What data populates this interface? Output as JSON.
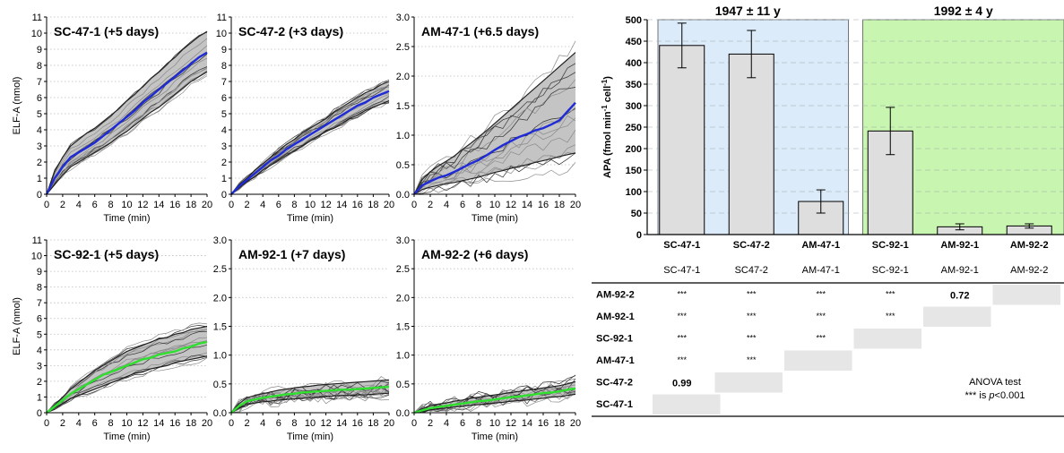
{
  "chart_data": [
    {
      "type": "line",
      "title": "SC-47-1 (+5 days)",
      "xlabel": "Time (min)",
      "ylabel": "ELF-A (nmol)",
      "xlim": [
        0,
        20
      ],
      "ylim": [
        0,
        11
      ],
      "mean_color": "#1f2bd6",
      "x": [
        0,
        1,
        2,
        3,
        4,
        5,
        6,
        7,
        8,
        9,
        10,
        11,
        12,
        13,
        14,
        15,
        16,
        17,
        18,
        19,
        20
      ],
      "mean": [
        0,
        1.0,
        1.7,
        2.3,
        2.6,
        2.9,
        3.2,
        3.6,
        4.0,
        4.4,
        4.8,
        5.2,
        5.7,
        6.1,
        6.5,
        6.9,
        7.3,
        7.7,
        8.1,
        8.5,
        8.8
      ],
      "band_lower": [
        0,
        0.6,
        1.2,
        1.7,
        2.0,
        2.3,
        2.6,
        2.9,
        3.2,
        3.6,
        3.9,
        4.3,
        4.7,
        5.1,
        5.4,
        5.8,
        6.2,
        6.6,
        7.0,
        7.3,
        7.6
      ],
      "band_upper": [
        0,
        1.4,
        2.3,
        3.0,
        3.4,
        3.8,
        4.1,
        4.5,
        4.9,
        5.3,
        5.8,
        6.2,
        6.7,
        7.2,
        7.6,
        8.1,
        8.5,
        9.0,
        9.4,
        9.8,
        10.1
      ]
    },
    {
      "type": "line",
      "title": "SC-47-2 (+3 days)",
      "xlabel": "Time (min)",
      "ylabel": "",
      "xlim": [
        0,
        20
      ],
      "ylim": [
        0,
        11
      ],
      "mean_color": "#1f2bd6",
      "x": [
        0,
        1,
        2,
        3,
        4,
        5,
        6,
        7,
        8,
        9,
        10,
        11,
        12,
        13,
        14,
        15,
        16,
        17,
        18,
        19,
        20
      ],
      "mean": [
        0,
        0.5,
        0.9,
        1.3,
        1.7,
        2.1,
        2.4,
        2.8,
        3.1,
        3.4,
        3.7,
        4.0,
        4.3,
        4.6,
        4.9,
        5.2,
        5.5,
        5.7,
        6.0,
        6.2,
        6.4
      ],
      "band_lower": [
        0,
        0.4,
        0.8,
        1.1,
        1.5,
        1.8,
        2.1,
        2.4,
        2.7,
        3.0,
        3.3,
        3.6,
        3.9,
        4.1,
        4.4,
        4.7,
        4.9,
        5.2,
        5.4,
        5.6,
        5.8
      ],
      "band_upper": [
        0,
        0.6,
        1.0,
        1.5,
        1.9,
        2.3,
        2.7,
        3.1,
        3.4,
        3.8,
        4.1,
        4.4,
        4.7,
        5.1,
        5.4,
        5.7,
        6.0,
        6.3,
        6.5,
        6.8,
        7.0
      ]
    },
    {
      "type": "line",
      "title": "AM-47-1 (+6.5 days)",
      "xlabel": "Time (min)",
      "ylabel": "",
      "xlim": [
        0,
        20
      ],
      "ylim": [
        0,
        3.0
      ],
      "mean_color": "#1f2bd6",
      "x": [
        0,
        1,
        2,
        3,
        4,
        5,
        6,
        7,
        8,
        9,
        10,
        11,
        12,
        13,
        14,
        15,
        16,
        17,
        18,
        19,
        20
      ],
      "mean": [
        0,
        0.15,
        0.22,
        0.28,
        0.32,
        0.38,
        0.45,
        0.52,
        0.58,
        0.66,
        0.75,
        0.83,
        0.9,
        0.97,
        1.02,
        1.08,
        1.12,
        1.18,
        1.25,
        1.4,
        1.55
      ],
      "band_lower": [
        0,
        0.08,
        0.12,
        0.15,
        0.18,
        0.2,
        0.23,
        0.26,
        0.29,
        0.33,
        0.37,
        0.4,
        0.44,
        0.47,
        0.5,
        0.54,
        0.57,
        0.6,
        0.64,
        0.67,
        0.7
      ],
      "band_upper": [
        0,
        0.25,
        0.38,
        0.48,
        0.56,
        0.65,
        0.76,
        0.86,
        0.97,
        1.08,
        1.2,
        1.32,
        1.44,
        1.56,
        1.68,
        1.8,
        1.92,
        2.04,
        2.16,
        2.28,
        2.4
      ]
    },
    {
      "type": "line",
      "title": "SC-92-1 (+5 days)",
      "xlabel": "Time (min)",
      "ylabel": "ELF-A (nmol)",
      "xlim": [
        0,
        20
      ],
      "ylim": [
        0,
        11
      ],
      "mean_color": "#2fe02f",
      "x": [
        0,
        1,
        2,
        3,
        4,
        5,
        6,
        7,
        8,
        9,
        10,
        11,
        12,
        13,
        14,
        15,
        16,
        17,
        18,
        19,
        20
      ],
      "mean": [
        0,
        0.4,
        0.8,
        1.2,
        1.5,
        1.8,
        2.1,
        2.4,
        2.6,
        2.8,
        3.0,
        3.2,
        3.4,
        3.5,
        3.7,
        3.8,
        3.9,
        4.1,
        4.2,
        4.4,
        4.5
      ],
      "band_lower": [
        0,
        0.3,
        0.6,
        0.9,
        1.1,
        1.3,
        1.5,
        1.7,
        1.9,
        2.1,
        2.3,
        2.5,
        2.6,
        2.8,
        2.9,
        3.0,
        3.2,
        3.3,
        3.4,
        3.5,
        3.6
      ],
      "band_upper": [
        0,
        0.5,
        1.0,
        1.5,
        1.9,
        2.3,
        2.7,
        3.0,
        3.3,
        3.6,
        3.9,
        4.1,
        4.3,
        4.5,
        4.7,
        4.8,
        5.0,
        5.1,
        5.3,
        5.4,
        5.5
      ]
    },
    {
      "type": "line",
      "title": "AM-92-1 (+7 days)",
      "xlabel": "Time (min)",
      "ylabel": "",
      "xlim": [
        0,
        20
      ],
      "ylim": [
        0,
        3.0
      ],
      "mean_color": "#2fe02f",
      "x": [
        0,
        1,
        2,
        3,
        4,
        5,
        6,
        7,
        8,
        9,
        10,
        11,
        12,
        13,
        14,
        15,
        16,
        17,
        18,
        19,
        20
      ],
      "mean": [
        0,
        0.12,
        0.2,
        0.23,
        0.26,
        0.28,
        0.3,
        0.32,
        0.33,
        0.35,
        0.36,
        0.37,
        0.38,
        0.39,
        0.4,
        0.4,
        0.41,
        0.42,
        0.43,
        0.44,
        0.45
      ],
      "band_lower": [
        0,
        0.08,
        0.14,
        0.17,
        0.19,
        0.2,
        0.22,
        0.23,
        0.24,
        0.25,
        0.26,
        0.27,
        0.28,
        0.29,
        0.3,
        0.3,
        0.31,
        0.31,
        0.32,
        0.33,
        0.34
      ],
      "band_upper": [
        0,
        0.16,
        0.26,
        0.3,
        0.33,
        0.36,
        0.39,
        0.41,
        0.43,
        0.45,
        0.46,
        0.48,
        0.49,
        0.5,
        0.51,
        0.52,
        0.53,
        0.54,
        0.55,
        0.56,
        0.57
      ]
    },
    {
      "type": "line",
      "title": "AM-92-2 (+6 days)",
      "xlabel": "Time (min)",
      "ylabel": "",
      "xlim": [
        0,
        20
      ],
      "ylim": [
        0,
        3.0
      ],
      "mean_color": "#2fe02f",
      "x": [
        0,
        1,
        2,
        3,
        4,
        5,
        6,
        7,
        8,
        9,
        10,
        11,
        12,
        13,
        14,
        15,
        16,
        17,
        18,
        19,
        20
      ],
      "mean": [
        0,
        0.04,
        0.08,
        0.1,
        0.12,
        0.14,
        0.16,
        0.18,
        0.2,
        0.21,
        0.23,
        0.25,
        0.27,
        0.28,
        0.3,
        0.32,
        0.34,
        0.35,
        0.37,
        0.4,
        0.42
      ],
      "band_lower": [
        0,
        0.02,
        0.05,
        0.07,
        0.08,
        0.1,
        0.11,
        0.13,
        0.14,
        0.15,
        0.17,
        0.18,
        0.2,
        0.21,
        0.22,
        0.24,
        0.25,
        0.27,
        0.28,
        0.3,
        0.32
      ],
      "band_upper": [
        0,
        0.07,
        0.12,
        0.15,
        0.17,
        0.2,
        0.22,
        0.25,
        0.27,
        0.29,
        0.31,
        0.33,
        0.35,
        0.37,
        0.39,
        0.41,
        0.43,
        0.45,
        0.47,
        0.5,
        0.54
      ]
    },
    {
      "type": "bar",
      "title": "",
      "ylabel": "APA (fmol min",
      "ylabel_sup1": "-1",
      "ylabel_mid": " cell",
      "ylabel_sup2": "-1",
      "ylabel_end": ")",
      "ylim": [
        0,
        500
      ],
      "yticks": [
        0,
        50,
        100,
        150,
        200,
        250,
        300,
        350,
        400,
        450,
        500
      ],
      "categories": [
        "SC-47-1",
        "SC-47-2",
        "AM-47-1",
        "SC-92-1",
        "AM-92-1",
        "AM-92-2"
      ],
      "values": [
        440,
        420,
        77,
        241,
        18,
        20
      ],
      "errors": [
        52,
        55,
        27,
        55,
        7,
        5
      ],
      "groups": [
        {
          "label": "1947 ± 11 y",
          "from": 0,
          "to": 2,
          "color": "#dcebfa"
        },
        {
          "label": "1992 ± 4 y",
          "from": 3,
          "to": 5,
          "color": "#c8f5b0"
        }
      ]
    },
    {
      "type": "table",
      "title": "",
      "columns": [
        "SC-47-1",
        "SC47-2",
        "AM-47-1",
        "SC-92-1",
        "AM-92-1",
        "AM-92-2"
      ],
      "rows": [
        {
          "label": "AM-92-2",
          "cells": [
            "***",
            "***",
            "***",
            "***",
            "0.72",
            ""
          ]
        },
        {
          "label": "AM-92-1",
          "cells": [
            "***",
            "***",
            "***",
            "***",
            "",
            ""
          ]
        },
        {
          "label": "SC-92-1",
          "cells": [
            "***",
            "***",
            "***",
            "",
            "",
            ""
          ]
        },
        {
          "label": "AM-47-1",
          "cells": [
            "***",
            "***",
            "",
            "",
            "",
            ""
          ]
        },
        {
          "label": "SC-47-2",
          "cells": [
            "0.99",
            "",
            "",
            "",
            "",
            ""
          ]
        },
        {
          "label": "SC-47-1",
          "cells": [
            "",
            "",
            "",
            "",
            "",
            ""
          ]
        }
      ],
      "note_title": "ANOVA test",
      "note_stars": "***",
      "note_is": "is",
      "note_p": "p",
      "note_rest": "<0.001"
    }
  ]
}
